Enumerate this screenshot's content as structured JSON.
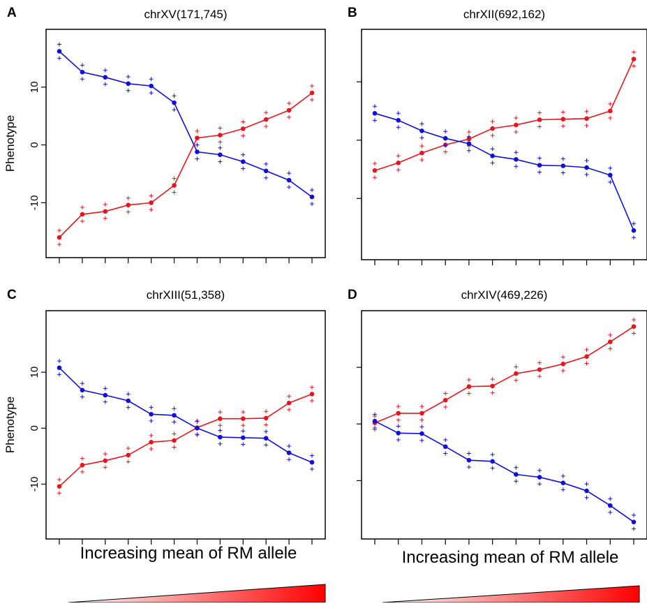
{
  "footer": {
    "left_text": "Increasing mean of RM allele",
    "right_text": "Increasing mean of RM allele"
  },
  "colors": {
    "red": "#e8161c",
    "blue": "#1010d8",
    "gradient_end": "#ff0000"
  },
  "chart_data": [
    {
      "panel": "A",
      "title": "chrXV(171,745)",
      "type": "line",
      "ylabel": "Phenotype",
      "yticks": [
        -10,
        0,
        10
      ],
      "ylim": [
        -19.5,
        20
      ],
      "x": [
        1,
        2,
        3,
        4,
        5,
        6,
        7,
        8,
        9,
        10,
        11,
        12
      ],
      "series": [
        {
          "color": "red",
          "values": [
            -16.0,
            -12.0,
            -11.5,
            -10.4,
            -10.0,
            -7.0,
            1.2,
            1.7,
            2.8,
            4.4,
            6.0,
            9.0
          ],
          "err": [
            1.2,
            1.2,
            1.2,
            1.2,
            1.2,
            1.2,
            1.2,
            1.2,
            1.2,
            1.2,
            1.2,
            1.2
          ]
        },
        {
          "color": "blue",
          "values": [
            16.2,
            12.6,
            11.7,
            10.6,
            10.2,
            7.3,
            -1.2,
            -1.7,
            -2.9,
            -4.5,
            -6.1,
            -9.0
          ],
          "err": [
            1.2,
            1.2,
            1.2,
            1.2,
            1.2,
            1.2,
            1.2,
            1.2,
            1.2,
            1.2,
            1.2,
            1.2
          ]
        }
      ]
    },
    {
      "panel": "B",
      "title": "chrXII(692,162)",
      "type": "line",
      "ylabel": "",
      "yticks": [
        -10,
        0,
        10
      ],
      "ylim": [
        -20.5,
        19
      ],
      "x": [
        1,
        2,
        3,
        4,
        5,
        6,
        7,
        8,
        9,
        10,
        11,
        12
      ],
      "series": [
        {
          "color": "red",
          "values": [
            -5.2,
            -3.9,
            -2.2,
            -0.8,
            0.2,
            2.0,
            2.6,
            3.5,
            3.6,
            3.7,
            5.0,
            13.9
          ],
          "err": [
            1.2,
            1.2,
            1.2,
            1.2,
            1.2,
            1.2,
            1.2,
            1.2,
            1.2,
            1.2,
            1.2,
            1.2
          ]
        },
        {
          "color": "blue",
          "values": [
            4.6,
            3.4,
            1.6,
            0.3,
            -0.6,
            -2.7,
            -3.3,
            -4.3,
            -4.4,
            -4.7,
            -6.0,
            -15.5
          ],
          "err": [
            1.2,
            1.2,
            1.2,
            1.2,
            1.2,
            1.2,
            1.2,
            1.2,
            1.2,
            1.2,
            1.2,
            1.2
          ]
        }
      ]
    },
    {
      "panel": "C",
      "title": "chrXIII(51,358)",
      "type": "line",
      "ylabel": "Phenotype",
      "yticks": [
        -10,
        0,
        10
      ],
      "ylim": [
        -19.8,
        21
      ],
      "x": [
        1,
        2,
        3,
        4,
        5,
        6,
        7,
        8,
        9,
        10,
        11,
        12
      ],
      "series": [
        {
          "color": "red",
          "values": [
            -10.4,
            -6.6,
            -5.8,
            -4.8,
            -2.5,
            -2.2,
            0.1,
            1.7,
            1.7,
            1.8,
            4.5,
            6.1
          ],
          "err": [
            1.2,
            1.2,
            1.2,
            1.2,
            1.2,
            1.2,
            1.2,
            1.2,
            1.2,
            1.2,
            1.2,
            1.2
          ]
        },
        {
          "color": "blue",
          "values": [
            10.8,
            6.8,
            5.9,
            4.9,
            2.5,
            2.3,
            0.0,
            -1.6,
            -1.7,
            -1.8,
            -4.4,
            -6.1
          ],
          "err": [
            1.2,
            1.2,
            1.2,
            1.2,
            1.2,
            1.2,
            1.2,
            1.2,
            1.2,
            1.2,
            1.2,
            1.2
          ]
        }
      ]
    },
    {
      "panel": "D",
      "title": "chrXIV(469,226)",
      "type": "line",
      "ylabel": "",
      "yticks": [
        -10,
        0,
        10
      ],
      "ylim": [
        -20.3,
        20
      ],
      "x": [
        1,
        2,
        3,
        4,
        5,
        6,
        7,
        8,
        9,
        10,
        11,
        12
      ],
      "series": [
        {
          "color": "red",
          "values": [
            0.2,
            1.9,
            1.9,
            4.2,
            6.6,
            6.7,
            8.9,
            9.6,
            10.6,
            11.9,
            14.5,
            17.2
          ],
          "err": [
            1.2,
            1.2,
            1.2,
            1.2,
            1.2,
            1.2,
            1.2,
            1.2,
            1.2,
            1.2,
            1.2,
            1.2
          ]
        },
        {
          "color": "blue",
          "values": [
            0.5,
            -1.6,
            -1.7,
            -4.0,
            -6.4,
            -6.6,
            -8.9,
            -9.4,
            -10.4,
            -11.8,
            -14.4,
            -17.3
          ],
          "err": [
            1.2,
            1.2,
            1.2,
            1.2,
            1.2,
            1.2,
            1.2,
            1.2,
            1.2,
            1.2,
            1.2,
            1.2
          ]
        }
      ]
    }
  ]
}
